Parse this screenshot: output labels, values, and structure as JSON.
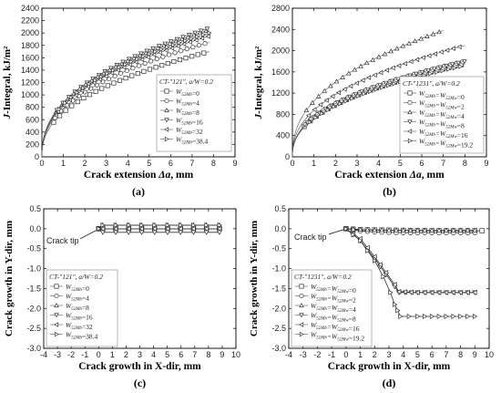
{
  "chart_data": [
    {
      "id": "a",
      "type": "scatter",
      "panel_label": "(a)",
      "xlabel_pre": "Crack extension ",
      "xlabel_sym": "Δa",
      "xlabel_post": ", mm",
      "ylabel_sym": "J",
      "ylabel_post": "-Integral, kJ/m²",
      "xlim": [
        0,
        9
      ],
      "ylim": [
        0,
        2400
      ],
      "xticks": [
        0,
        1,
        2,
        3,
        4,
        5,
        6,
        7,
        8,
        9
      ],
      "yticks": [
        0,
        200,
        400,
        600,
        800,
        1000,
        1200,
        1400,
        1600,
        1800,
        2000,
        2200,
        2400
      ],
      "legend_title": "CT-\"121\", a/W=0.2",
      "legend_position": "lower-right",
      "curve": "power",
      "series": [
        {
          "name": "W52Mb=0",
          "marker": "square",
          "x_max": 7.8,
          "J_end": 1700
        },
        {
          "name": "W52Mb=4",
          "marker": "circle",
          "x_max": 7.8,
          "J_end": 1850
        },
        {
          "name": "W52Mb=8",
          "marker": "triangle",
          "x_max": 7.8,
          "J_end": 2050
        },
        {
          "name": "W52Mb=16",
          "marker": "tri-down",
          "x_max": 7.8,
          "J_end": 2080
        },
        {
          "name": "W52Mb=32",
          "marker": "tri-left",
          "x_max": 7.8,
          "J_end": 1950
        },
        {
          "name": "W52Mb=38.4",
          "marker": "tri-right",
          "x_max": 7.8,
          "J_end": 2000
        }
      ]
    },
    {
      "id": "b",
      "type": "scatter",
      "panel_label": "(b)",
      "xlabel_pre": "Crack extension ",
      "xlabel_sym": "Δa",
      "xlabel_post": ", mm",
      "ylabel_sym": "J",
      "ylabel_post": "-Integral, kJ/m²",
      "xlim": [
        0,
        9
      ],
      "ylim": [
        0,
        2800
      ],
      "xticks": [
        0,
        1,
        2,
        3,
        4,
        5,
        6,
        7,
        8,
        9
      ],
      "yticks": [
        0,
        400,
        800,
        1200,
        1600,
        2000,
        2400,
        2800
      ],
      "legend_title": "CT-\"1231\", a/W=0.2",
      "legend_position": "lower-right",
      "curve": "power",
      "series": [
        {
          "name": "W52Mb=W52Mw=0",
          "marker": "square",
          "x_max": 8.0,
          "J_end": 1750
        },
        {
          "name": "W52Mb=W52Mw=2",
          "marker": "circle",
          "x_max": 8.0,
          "J_end": 1800
        },
        {
          "name": "W52Mb=W52Mw=4",
          "marker": "triangle",
          "x_max": 7.0,
          "J_end": 2380
        },
        {
          "name": "W52Mb=W52Mw=8",
          "marker": "tri-down",
          "x_max": 8.0,
          "J_end": 1800
        },
        {
          "name": "W52Mb=W52Mw=16",
          "marker": "tri-left",
          "x_max": 8.0,
          "J_end": 2100
        },
        {
          "name": "W52Mb=W52Mw=19.2",
          "marker": "tri-right",
          "x_max": 8.0,
          "J_end": 1720
        }
      ]
    },
    {
      "id": "c",
      "type": "line",
      "panel_label": "(c)",
      "xlabel": "Crack growth in X-dir, mm",
      "ylabel": "Crack growth in Y-dir, mm",
      "xlim": [
        -4,
        10
      ],
      "ylim": [
        -3.0,
        0.5
      ],
      "xticks": [
        -4,
        -3,
        -2,
        -1,
        0,
        1,
        2,
        3,
        4,
        5,
        6,
        7,
        8,
        9,
        10
      ],
      "yticks": [
        0.5,
        0.0,
        -0.5,
        -1.0,
        -1.5,
        -2.0,
        -2.5,
        -3.0
      ],
      "annotation": "Crack tip",
      "legend_title": "CT-\"121\", a/W=0.2",
      "legend_position": "lower-left",
      "series": [
        {
          "name": "W52Mb=0",
          "marker": "square",
          "x_end": 8.8,
          "y": 0.0
        },
        {
          "name": "W52Mb=4",
          "marker": "circle",
          "x_end": 8.8,
          "y": 0.0
        },
        {
          "name": "W52Mb=8",
          "marker": "triangle",
          "x_end": 8.8,
          "y": 0.09
        },
        {
          "name": "W52Mb=16",
          "marker": "tri-down",
          "x_end": 8.8,
          "y": -0.09
        },
        {
          "name": "W52Mb=32",
          "marker": "tri-left",
          "x_end": 8.8,
          "y": 0.0
        },
        {
          "name": "W52Mb=38.4",
          "marker": "tri-right",
          "x_end": 8.8,
          "y": 0.09
        }
      ]
    },
    {
      "id": "d",
      "type": "line",
      "panel_label": "(d)",
      "xlabel": "Crack growth in X-dir, mm",
      "ylabel": "Crack growth in Y-dir, mm",
      "xlim": [
        -4,
        10
      ],
      "ylim": [
        -3.0,
        0.5
      ],
      "xticks": [
        -4,
        -3,
        -2,
        -1,
        0,
        1,
        2,
        3,
        4,
        5,
        6,
        7,
        8,
        9,
        10
      ],
      "yticks": [
        0.5,
        0.0,
        -0.5,
        -1.0,
        -1.5,
        -2.0,
        -2.5,
        -3.0
      ],
      "annotation": "Crack tip",
      "legend_title": "CT-\"1231\", a/W=0.2",
      "legend_position": "lower-left",
      "series": [
        {
          "name": "W52Mb=W52Mw=0",
          "marker": "square",
          "points": [
            [
              0,
              0
            ],
            [
              1,
              -0.02
            ],
            [
              2,
              -0.03
            ],
            [
              4,
              -0.04
            ],
            [
              6,
              -0.05
            ],
            [
              8,
              -0.05
            ],
            [
              9.5,
              -0.05
            ]
          ]
        },
        {
          "name": "W52Mb=W52Mw=2",
          "marker": "circle",
          "points": [
            [
              0,
              0
            ],
            [
              1,
              -0.05
            ],
            [
              2,
              -0.08
            ],
            [
              4,
              -0.1
            ],
            [
              6,
              -0.1
            ],
            [
              8,
              -0.1
            ],
            [
              9,
              -0.1
            ]
          ]
        },
        {
          "name": "W52Mb=W52Mw=4",
          "marker": "triangle",
          "points": [
            [
              0,
              0
            ],
            [
              1,
              -0.02
            ],
            [
              2,
              -0.03
            ],
            [
              4,
              -0.04
            ],
            [
              6,
              -0.04
            ],
            [
              8,
              -0.04
            ],
            [
              9,
              -0.04
            ]
          ]
        },
        {
          "name": "W52Mb=W52Mw=8",
          "marker": "tri-down",
          "points": [
            [
              0,
              0
            ],
            [
              1,
              -0.3
            ],
            [
              2,
              -0.75
            ],
            [
              2.8,
              -1.15
            ],
            [
              3.4,
              -1.45
            ],
            [
              3.7,
              -1.6
            ],
            [
              5,
              -1.6
            ],
            [
              7,
              -1.6
            ],
            [
              9,
              -1.6
            ]
          ]
        },
        {
          "name": "W52Mb=W52Mw=16",
          "marker": "tri-left",
          "points": [
            [
              0,
              0
            ],
            [
              1,
              -0.25
            ],
            [
              2,
              -0.7
            ],
            [
              2.8,
              -1.1
            ],
            [
              3.4,
              -1.4
            ],
            [
              3.7,
              -1.58
            ],
            [
              5,
              -1.6
            ],
            [
              7,
              -1.6
            ],
            [
              9,
              -1.6
            ]
          ]
        },
        {
          "name": "W52Mb=W52Mw=19.2",
          "marker": "tri-right",
          "points": [
            [
              0,
              0
            ],
            [
              1,
              -0.3
            ],
            [
              2,
              -0.8
            ],
            [
              2.6,
              -1.2
            ],
            [
              3.1,
              -1.6
            ],
            [
              3.4,
              -1.9
            ],
            [
              3.6,
              -2.05
            ],
            [
              3.8,
              -2.2
            ],
            [
              5,
              -2.2
            ],
            [
              7,
              -2.2
            ],
            [
              9,
              -2.2
            ]
          ]
        }
      ]
    }
  ]
}
